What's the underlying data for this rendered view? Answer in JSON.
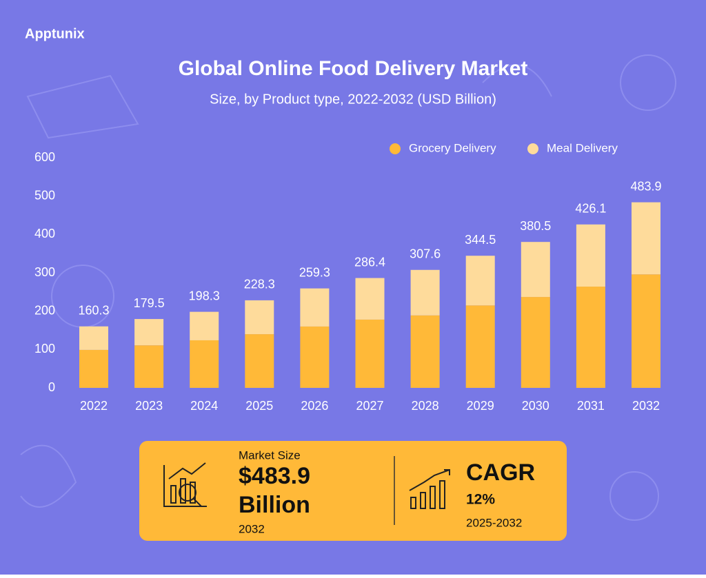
{
  "brand": "Apptunix",
  "chart_data": {
    "type": "bar",
    "stacked": true,
    "title": "Global Online Food Delivery Market",
    "subtitle": "Size, by Product type, 2022-2032 (USD Billion)",
    "categories": [
      "2022",
      "2023",
      "2024",
      "2025",
      "2026",
      "2027",
      "2028",
      "2029",
      "2030",
      "2031",
      "2032"
    ],
    "series": [
      {
        "name": "Grocery Delivery",
        "color": "#ffb938",
        "values": [
          99,
          111,
          124,
          140,
          160,
          178,
          189,
          215,
          237,
          264,
          296
        ]
      },
      {
        "name": "Meal Delivery",
        "color": "#fedb9b",
        "values": [
          61.3,
          68.5,
          74.3,
          88.3,
          99.3,
          108.4,
          118.6,
          129.5,
          143.5,
          162.1,
          187.9
        ]
      }
    ],
    "totals": [
      160.3,
      179.5,
      198.3,
      228.3,
      259.3,
      286.4,
      307.6,
      344.5,
      380.5,
      426.1,
      483.9
    ],
    "ylim": [
      0,
      600
    ],
    "yticks": [
      0,
      100,
      200,
      300,
      400,
      500,
      600
    ],
    "grid": false,
    "legend": "top-right"
  },
  "summary": {
    "market_size_label": "Market Size",
    "market_size_value": "$483.9",
    "market_size_unit": "Billion",
    "market_size_year": "2032",
    "cagr_label": "CAGR",
    "cagr_value": "12%",
    "cagr_period": "2025-2032"
  }
}
